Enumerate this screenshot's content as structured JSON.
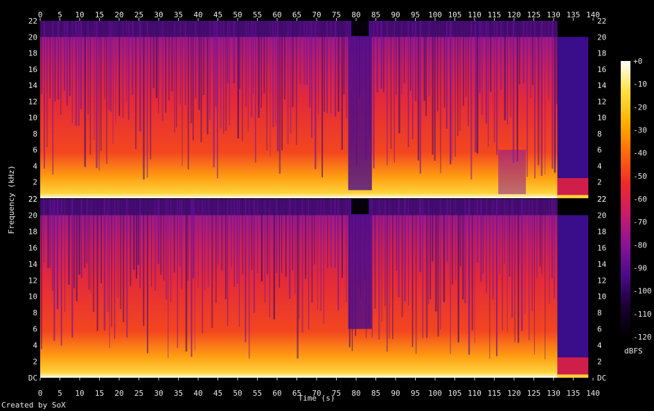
{
  "chart_data": {
    "type": "heatmap",
    "subtype": "spectrogram",
    "xlabel": "Time (s)",
    "ylabel": "Frequency (kHz)",
    "xlim": [
      0,
      140
    ],
    "ylim": [
      0,
      22
    ],
    "x_ticks": [
      "0",
      "5",
      "10",
      "15",
      "20",
      "25",
      "30",
      "35",
      "40",
      "45",
      "50",
      "55",
      "60",
      "65",
      "70",
      "75",
      "80",
      "85",
      "90",
      "95",
      "100",
      "105",
      "110",
      "115",
      "120",
      "125",
      "130",
      "135",
      "140"
    ],
    "y_ticks": [
      "DC",
      "2",
      "4",
      "6",
      "8",
      "10",
      "12",
      "14",
      "16",
      "18",
      "20",
      "22"
    ],
    "channels": 2,
    "colorbar": {
      "label": "dBFS",
      "range": [
        -120,
        0
      ],
      "ticks": [
        "+0",
        "-10",
        "-20",
        "-30",
        "-40",
        "-50",
        "-60",
        "-70",
        "-80",
        "-90",
        "-100",
        "-110",
        "-120"
      ],
      "palette": [
        "#000000",
        "#1a0033",
        "#4b0a8a",
        "#8a1298",
        "#c81c6a",
        "#ee2a28",
        "#ff6a0a",
        "#ffb000",
        "#ffe040",
        "#ffffff"
      ]
    },
    "features": {
      "audio_end_s": 131,
      "gap_start_s": 78,
      "gap_end_s": 84,
      "bandwidth_cutoff_khz": 20,
      "notch_region_s": [
        116,
        123
      ]
    }
  },
  "footer": {
    "credit": "Created by SoX"
  }
}
